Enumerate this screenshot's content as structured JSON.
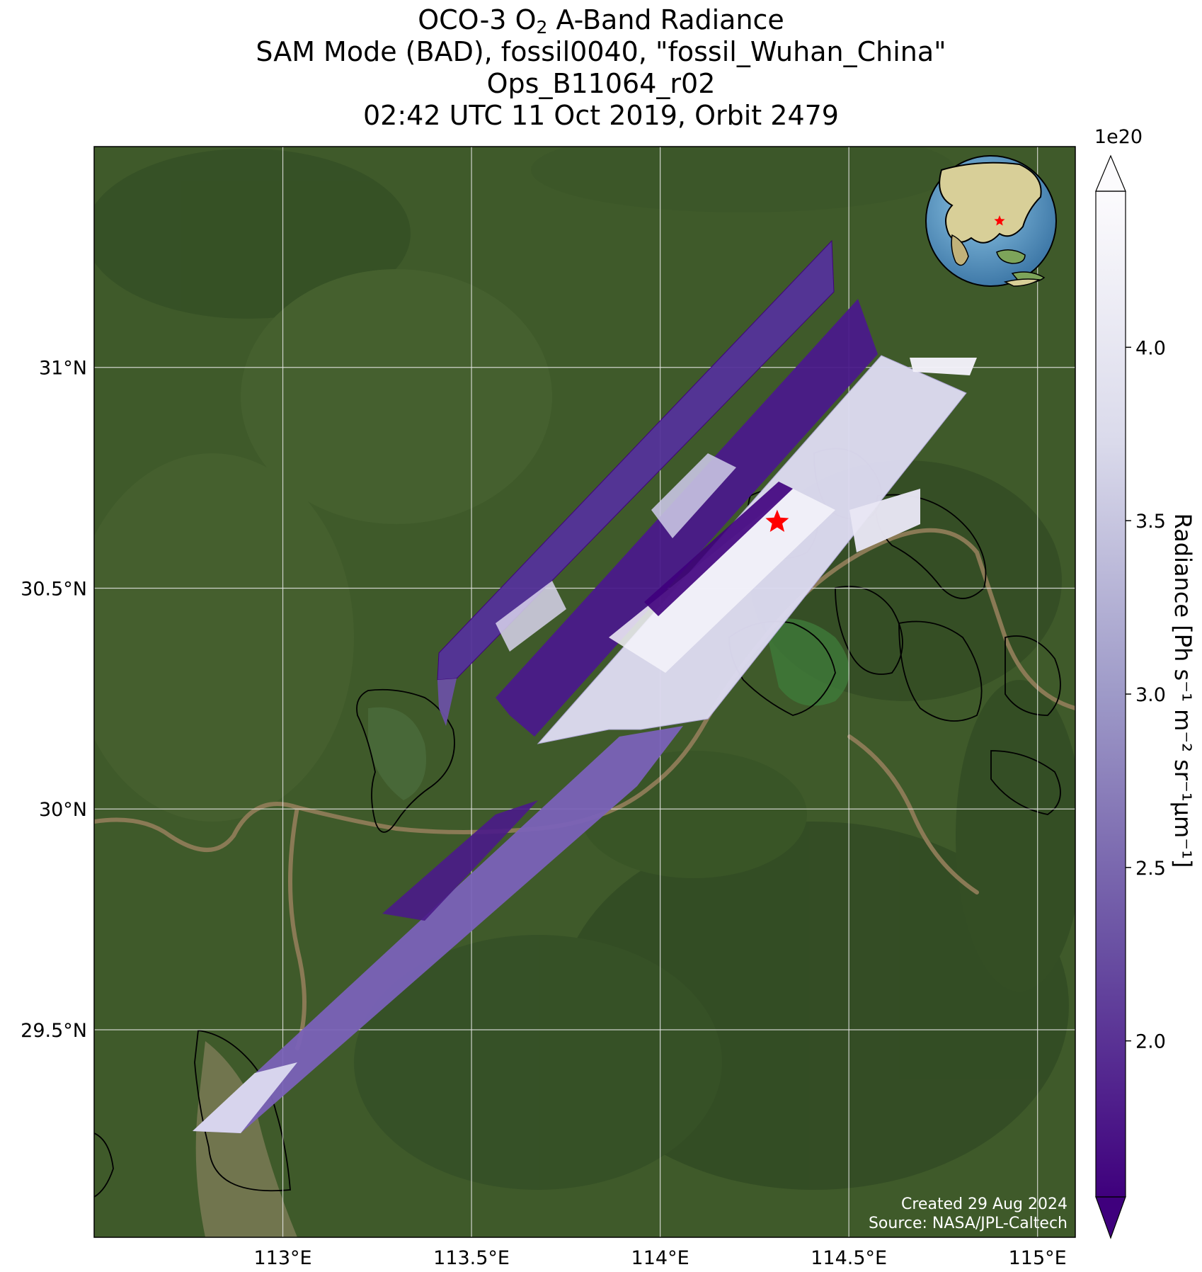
{
  "title": {
    "line1_before": "OCO-3 O",
    "line1_sub": "2",
    "line1_after": " A-Band Radiance",
    "line2": "SAM Mode (BAD), fossil0040, \"fossil_Wuhan_China\"",
    "line3": "Ops_B11064_r02",
    "line4": "02:42 UTC 11 Oct 2019, Orbit 2479"
  },
  "map": {
    "lon_range": [
      112.5,
      115.1
    ],
    "lat_range": [
      29.03,
      31.5
    ],
    "lon_ticks": [
      {
        "value": 113.0,
        "label": "113°E"
      },
      {
        "value": 113.5,
        "label": "113.5°E"
      },
      {
        "value": 114.0,
        "label": "114°E"
      },
      {
        "value": 114.5,
        "label": "114.5°E"
      },
      {
        "value": 115.0,
        "label": "115°E"
      }
    ],
    "lat_ticks": [
      {
        "value": 31.0,
        "label": "31°N"
      },
      {
        "value": 30.5,
        "label": "30.5°N"
      },
      {
        "value": 30.0,
        "label": "30°N"
      },
      {
        "value": 29.5,
        "label": "29.5°N"
      }
    ],
    "target_marker": {
      "lon": 114.31,
      "lat": 30.65,
      "symbol": "red-star"
    },
    "colors": {
      "land": "#3f5a2a",
      "river": "#8a7a55",
      "lake": "#4c6e3a",
      "grid": "#e8e8e8",
      "star": "#ff0000"
    }
  },
  "colorbar": {
    "label": "Radiance [Ph s⁻¹ m⁻² sr⁻¹μm⁻¹]",
    "scale_note": "1e20",
    "range": [
      1.55,
      4.45
    ],
    "ticks": [
      {
        "value": 2.0,
        "label": "2.0"
      },
      {
        "value": 2.5,
        "label": "2.5"
      },
      {
        "value": 3.0,
        "label": "3.0"
      },
      {
        "value": 3.5,
        "label": "3.5"
      },
      {
        "value": 4.0,
        "label": "4.0"
      }
    ],
    "colormap": "Purples_r",
    "color_low": "#3f007d",
    "color_high": "#fcfbfd",
    "extend": "both"
  },
  "inset_globe": {
    "marker": "red-star",
    "region": "Asia"
  },
  "credits": {
    "created": "Created 29 Aug 2024",
    "source": "Source: NASA/JPL-Caltech"
  }
}
